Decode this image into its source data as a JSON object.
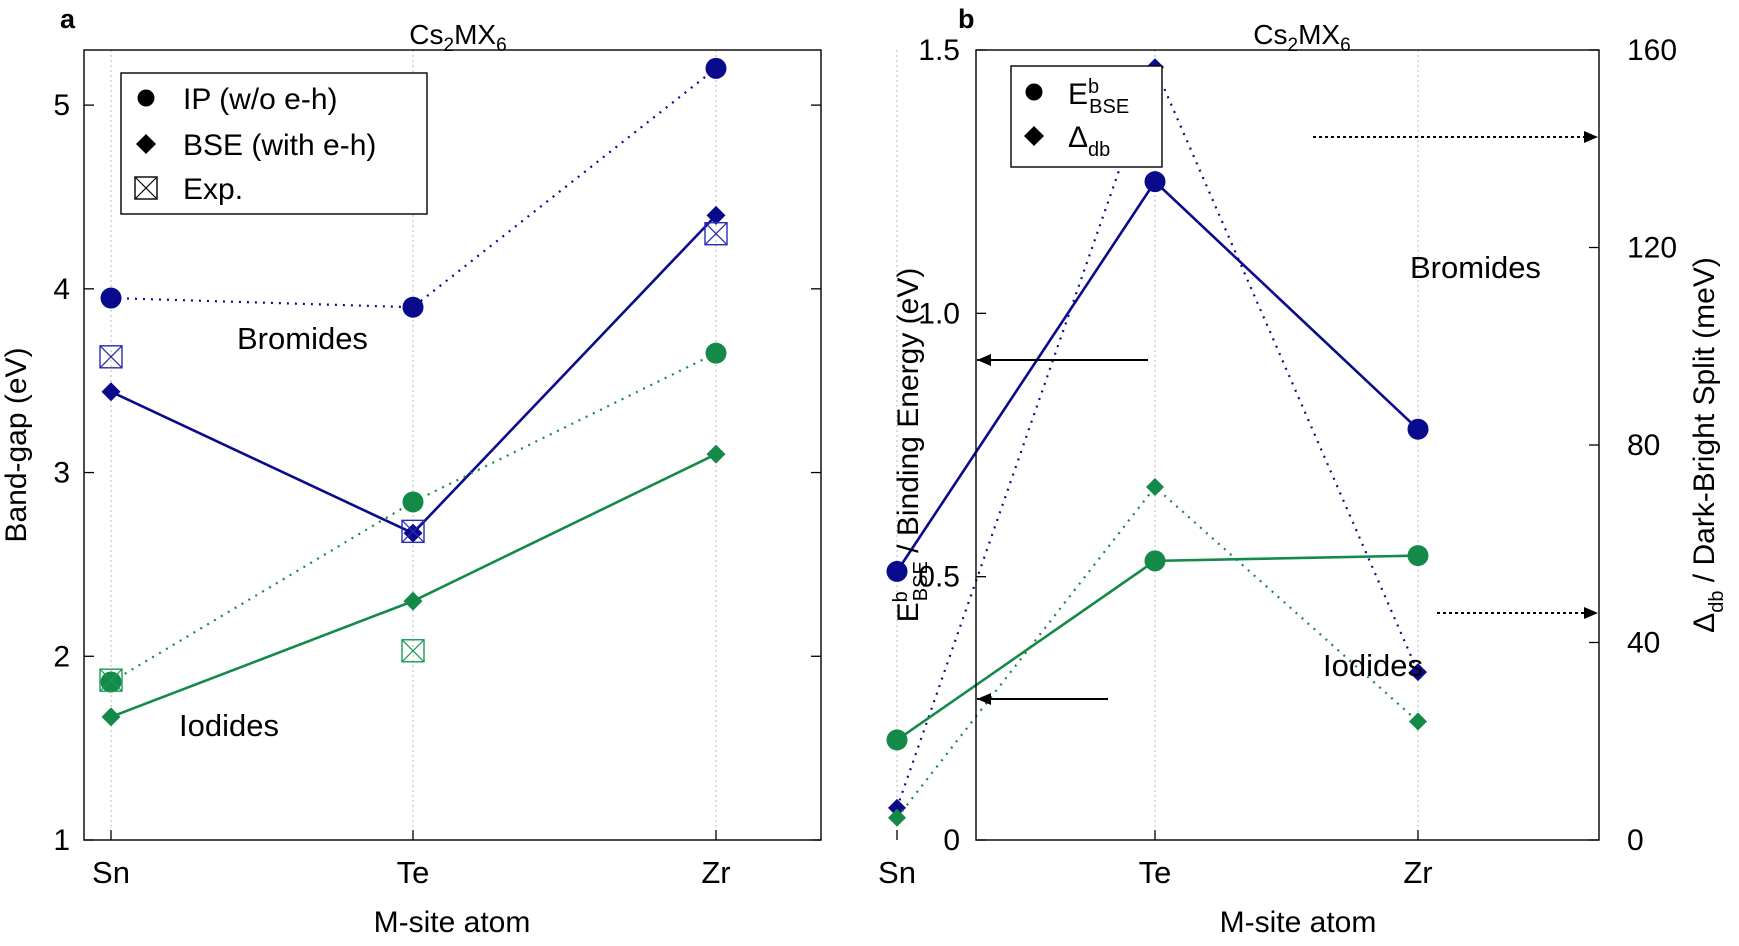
{
  "colors": {
    "bromide": "#0a0a8c",
    "iodide": "#138a48",
    "exp_bromide": "#2b2bb0",
    "exp_iodide": "#1a9a58",
    "axis": "#000000",
    "grid": "#b8b8b8"
  },
  "chart_data": [
    {
      "panel_label": "a",
      "type": "line",
      "title_main": "Cs",
      "title_sub1": "2",
      "title_mid": "MX",
      "title_sub2": "6",
      "xlabel": "M-site atom",
      "ylabel": "Band-gap (eV)",
      "categories": [
        "Sn",
        "Te",
        "Zr"
      ],
      "ylim": [
        1,
        5.3
      ],
      "yticks": [
        "1",
        "2",
        "3",
        "4",
        "5"
      ],
      "series": [
        {
          "name": "Bromides IP (w/o e-h)",
          "group": "bromide",
          "method": "IP",
          "values": [
            3.95,
            3.9,
            5.2
          ]
        },
        {
          "name": "Bromides BSE (with e-h)",
          "group": "bromide",
          "method": "BSE",
          "values": [
            3.44,
            2.67,
            4.4
          ]
        },
        {
          "name": "Bromides Exp.",
          "group": "bromide",
          "method": "Exp",
          "values": [
            3.63,
            2.68,
            4.3
          ]
        },
        {
          "name": "Iodides IP (w/o e-h)",
          "group": "iodide",
          "method": "IP",
          "values": [
            1.86,
            2.84,
            3.65
          ]
        },
        {
          "name": "Iodides BSE (with e-h)",
          "group": "iodide",
          "method": "BSE",
          "values": [
            1.67,
            2.3,
            3.1
          ]
        },
        {
          "name": "Iodides Exp.",
          "group": "iodide",
          "method": "Exp",
          "values": [
            1.87,
            2.03,
            null
          ]
        }
      ],
      "legend": [
        {
          "marker": "circle",
          "label": "IP (w/o e-h)"
        },
        {
          "marker": "diamond",
          "label": "BSE (with e-h)"
        },
        {
          "marker": "boxcross",
          "label": "Exp."
        }
      ],
      "annotations": {
        "bromides": "Bromides",
        "iodides": "Iodides"
      }
    },
    {
      "panel_label": "b",
      "type": "line",
      "title_main": "Cs",
      "title_sub1": "2",
      "title_mid": "MX",
      "title_sub2": "6",
      "xlabel": "M-site atom",
      "ylabel_left_parts": [
        "E",
        "b",
        "BSE",
        " / Binding Energy (eV)"
      ],
      "ylabel_right_parts": [
        "Δ",
        "db",
        " / Dark-Bright Split (meV)"
      ],
      "categories": [
        "Sn",
        "Te",
        "Zr"
      ],
      "ylim_left": [
        0,
        1.5
      ],
      "ylim_right": [
        0,
        160
      ],
      "yticks_left": [
        "0",
        "0.5",
        "1.0",
        "1.5"
      ],
      "yticks_right": [
        "0",
        "40",
        "80",
        "120",
        "160"
      ],
      "series": [
        {
          "name": "Bromides binding energy",
          "group": "bromide",
          "axis": "left",
          "values": [
            0.51,
            1.25,
            0.78
          ]
        },
        {
          "name": "Bromides dark-bright split",
          "group": "bromide",
          "axis": "right",
          "values": [
            6.5,
            156.5,
            34
          ]
        },
        {
          "name": "Iodides binding energy",
          "group": "iodide",
          "axis": "left",
          "values": [
            0.19,
            0.53,
            0.54
          ]
        },
        {
          "name": "Iodides dark-bright split",
          "group": "iodide",
          "axis": "right",
          "values": [
            4.5,
            71.5,
            24
          ]
        }
      ],
      "legend": [
        {
          "marker": "circle",
          "main": "E",
          "sup": "b",
          "sub": "BSE"
        },
        {
          "marker": "diamond",
          "main": "Δ",
          "sup": "",
          "sub": "db"
        }
      ],
      "annotations": {
        "bromides": "Bromides",
        "iodides": "Iodides"
      }
    }
  ]
}
